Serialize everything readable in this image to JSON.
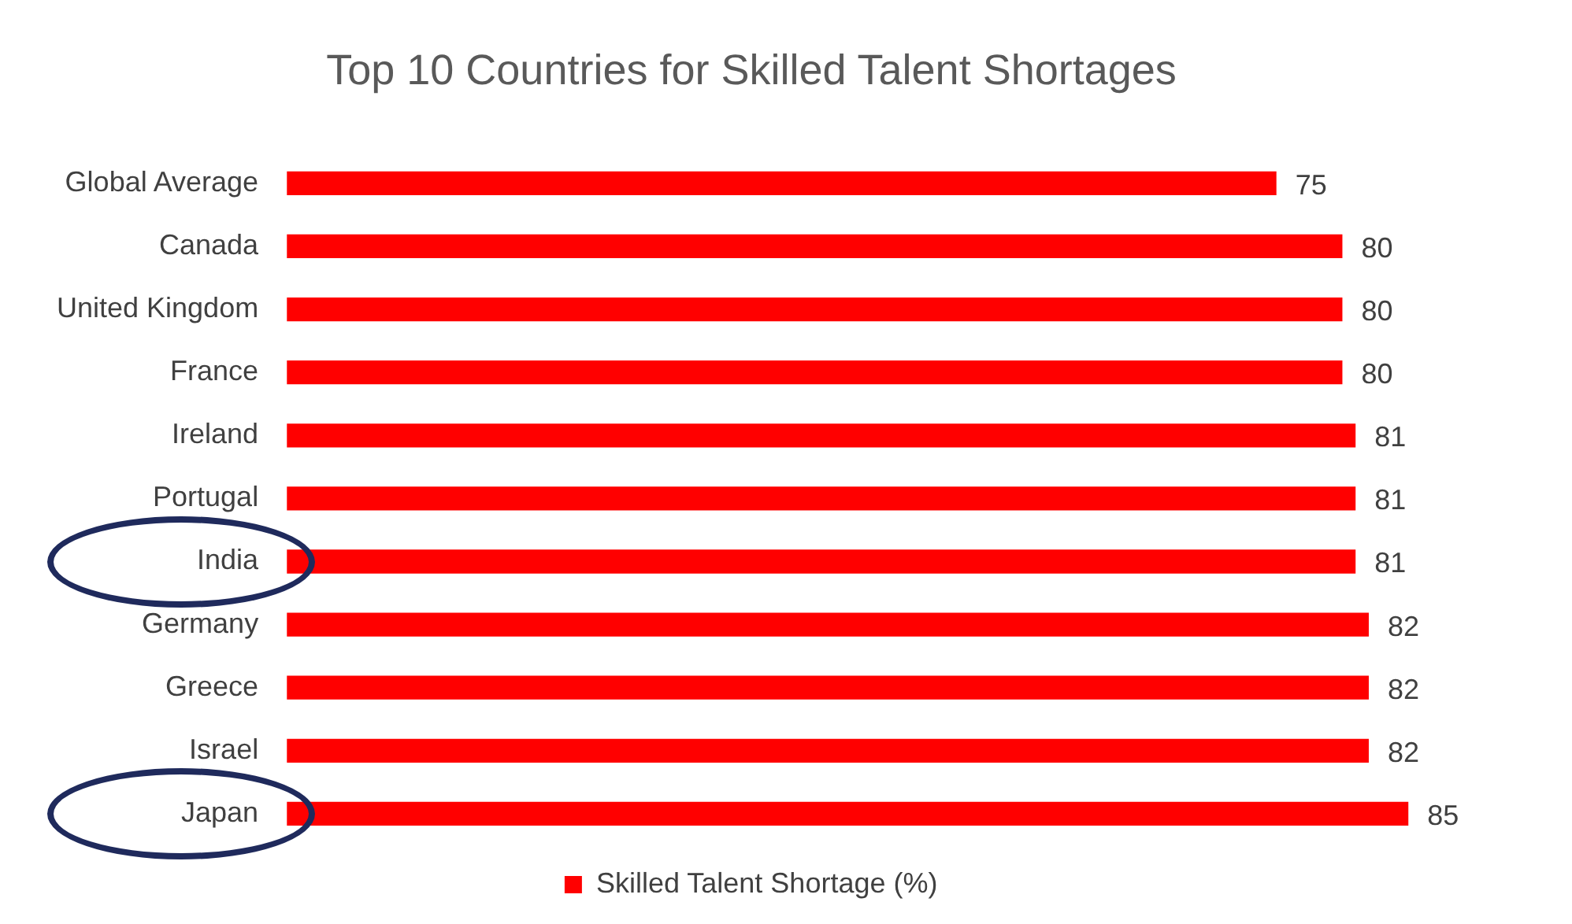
{
  "chart_data": {
    "type": "bar",
    "orientation": "horizontal",
    "title": "Top 10 Countries for Skilled Talent Shortages",
    "categories": [
      "Global Average",
      "Canada",
      "United Kingdom",
      "France",
      "Ireland",
      "Portugal",
      "India",
      "Germany",
      "Greece",
      "Israel",
      "Japan"
    ],
    "series": [
      {
        "name": "Skilled Talent Shortage (%)",
        "color": "#ff0000",
        "values": [
          75,
          80,
          80,
          80,
          81,
          81,
          81,
          82,
          82,
          82,
          85
        ]
      }
    ],
    "tick_labels": "y",
    "data_labels": true,
    "grid": false,
    "legend": "bottom"
  }
}
